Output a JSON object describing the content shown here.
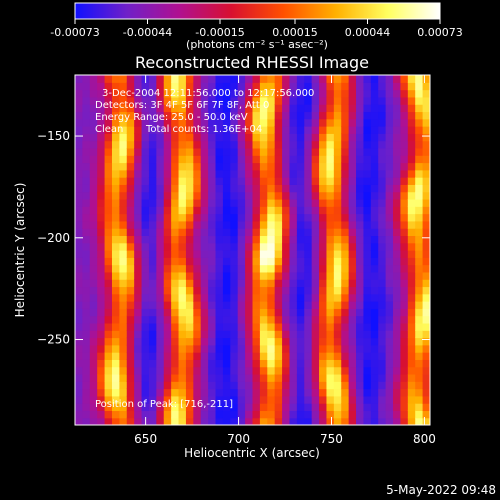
{
  "chart_data": {
    "type": "heatmap",
    "title": "Reconstructed RHESSI Image",
    "xlabel": "Heliocentric X (arcsec)",
    "ylabel": "Heliocentric Y (arcsec)",
    "xlim": [
      612,
      803
    ],
    "ylim": [
      -292,
      -120
    ],
    "xticks": [
      650,
      700,
      750,
      800
    ],
    "yticks": [
      -150,
      -200,
      -250
    ],
    "colorbar": {
      "label": "(photons cm⁻² s⁻¹ asec⁻²)",
      "min": -0.00073,
      "max": 0.00073,
      "tick_values": [
        -0.00073,
        -0.00044,
        -0.00015,
        0.00015,
        0.00044,
        0.00073
      ],
      "tick_labels": [
        "-0.00073",
        "-0.00044",
        "-0.00015",
        "0.00015",
        "0.00044",
        "0.00073"
      ],
      "colormap": [
        "#1010ff",
        "#7020c8",
        "#b01090",
        "#d81030",
        "#ff5000",
        "#ffb000",
        "#ffff60",
        "#ffffff"
      ]
    },
    "annotations": [
      "3-Dec-2004 12:11:56.000 to 12:17:56.000",
      "Detectors: 3F 4F 5F 6F 7F 8F, Att 0",
      "Energy Range: 25.0 - 50.0 keV",
      "Clean",
      "Total counts: 1.36E+04",
      "Position of Peak: [716,-211]"
    ],
    "bright_stripes_x": [
      636,
      669,
      716,
      751,
      798
    ],
    "dark_stripes_x": [
      652,
      694,
      734,
      770
    ],
    "peak": [
      716,
      -211
    ],
    "timestamp": "5-May-2022 09:48"
  }
}
